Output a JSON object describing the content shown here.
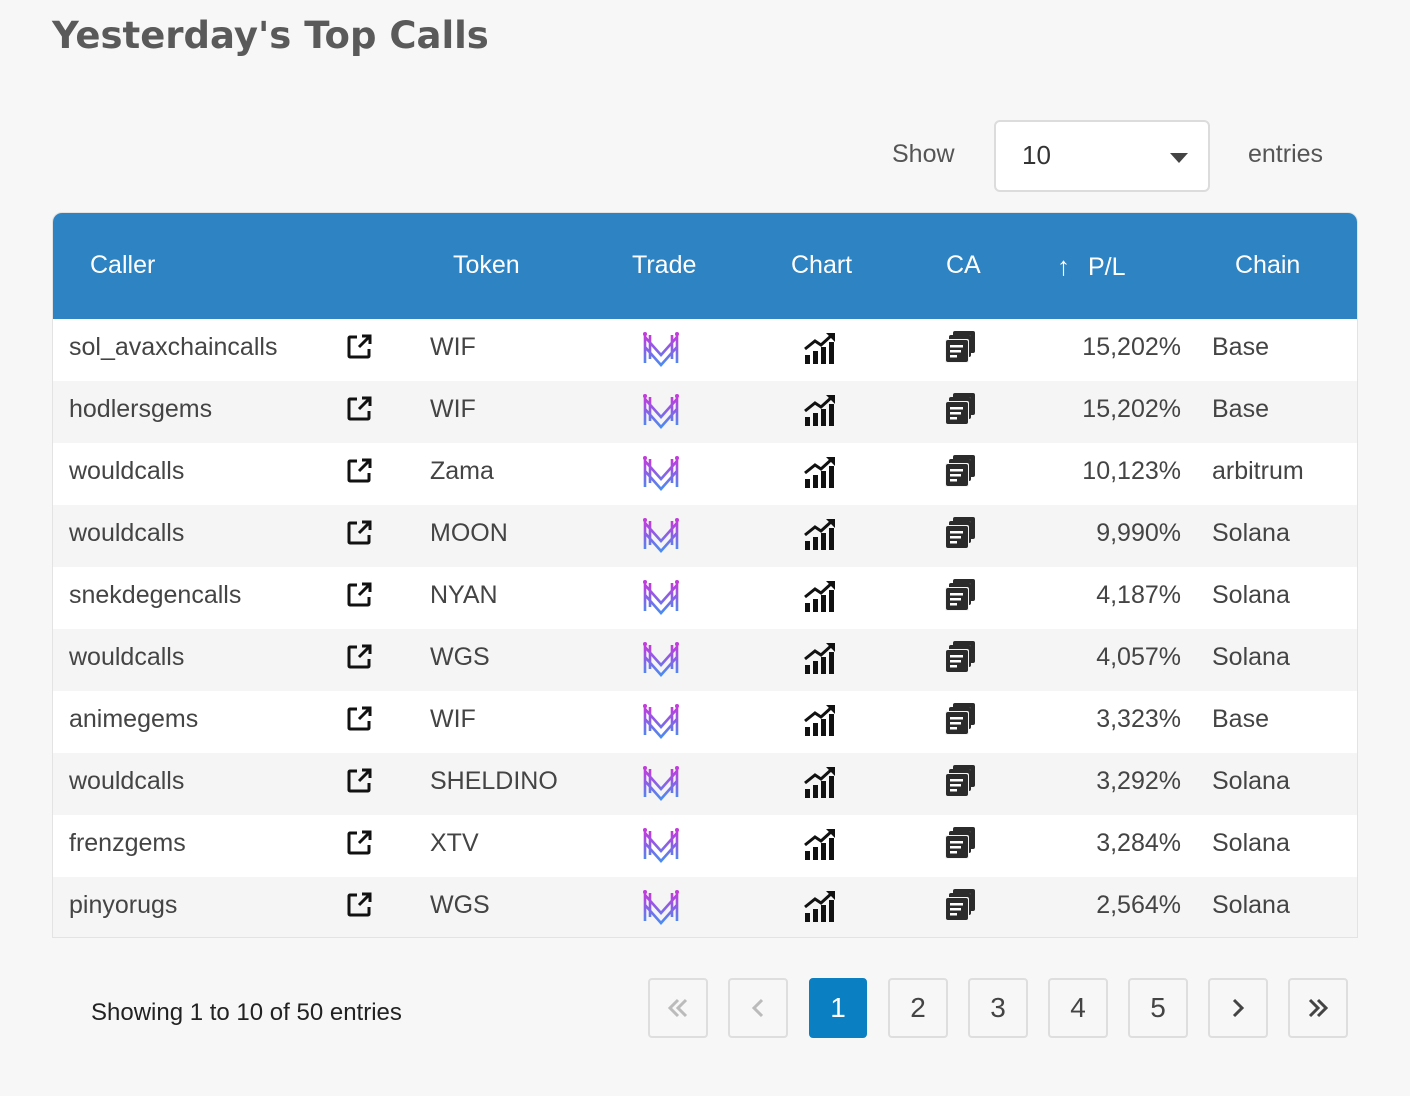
{
  "page": {
    "title": "Yesterday's Top Calls"
  },
  "length_control": {
    "show_label": "Show",
    "selected": "10",
    "entries_label": "entries"
  },
  "table": {
    "columns": {
      "caller": "Caller",
      "token": "Token",
      "trade": "Trade",
      "chart": "Chart",
      "ca": "CA",
      "pl": "P/L",
      "chain": "Chain"
    },
    "sort_icon": "arrow-up-icon",
    "rows": [
      {
        "caller": "sol_avaxchaincalls",
        "token": "WIF",
        "pl": "15,202%",
        "chain": "Base"
      },
      {
        "caller": "hodlersgems",
        "token": "WIF",
        "pl": "15,202%",
        "chain": "Base"
      },
      {
        "caller": "wouldcalls",
        "token": "Zama",
        "pl": "10,123%",
        "chain": "arbitrum"
      },
      {
        "caller": "wouldcalls",
        "token": "MOON",
        "pl": "9,990%",
        "chain": "Solana"
      },
      {
        "caller": "snekdegencalls",
        "token": "NYAN",
        "pl": "4,187%",
        "chain": "Solana"
      },
      {
        "caller": "wouldcalls",
        "token": "WGS",
        "pl": "4,057%",
        "chain": "Solana"
      },
      {
        "caller": "animegems",
        "token": "WIF",
        "pl": "3,323%",
        "chain": "Base"
      },
      {
        "caller": "wouldcalls",
        "token": "SHELDINO",
        "pl": "3,292%",
        "chain": "Solana"
      },
      {
        "caller": "frenzgems",
        "token": "XTV",
        "pl": "3,284%",
        "chain": "Solana"
      },
      {
        "caller": "pinyorugs",
        "token": "WGS",
        "pl": "2,564%",
        "chain": "Solana"
      }
    ]
  },
  "footer": {
    "info": "Showing 1 to 10 of 50 entries",
    "pagination": {
      "first": "«",
      "prev": "‹",
      "pages": [
        "1",
        "2",
        "3",
        "4",
        "5"
      ],
      "current": "1",
      "next": "›",
      "last": "»"
    }
  },
  "colors": {
    "header_bg": "#2e83c3",
    "active_page": "#0a7fc2",
    "trade_icon_gradient": [
      "#c23bdc",
      "#4a8cf0"
    ]
  }
}
